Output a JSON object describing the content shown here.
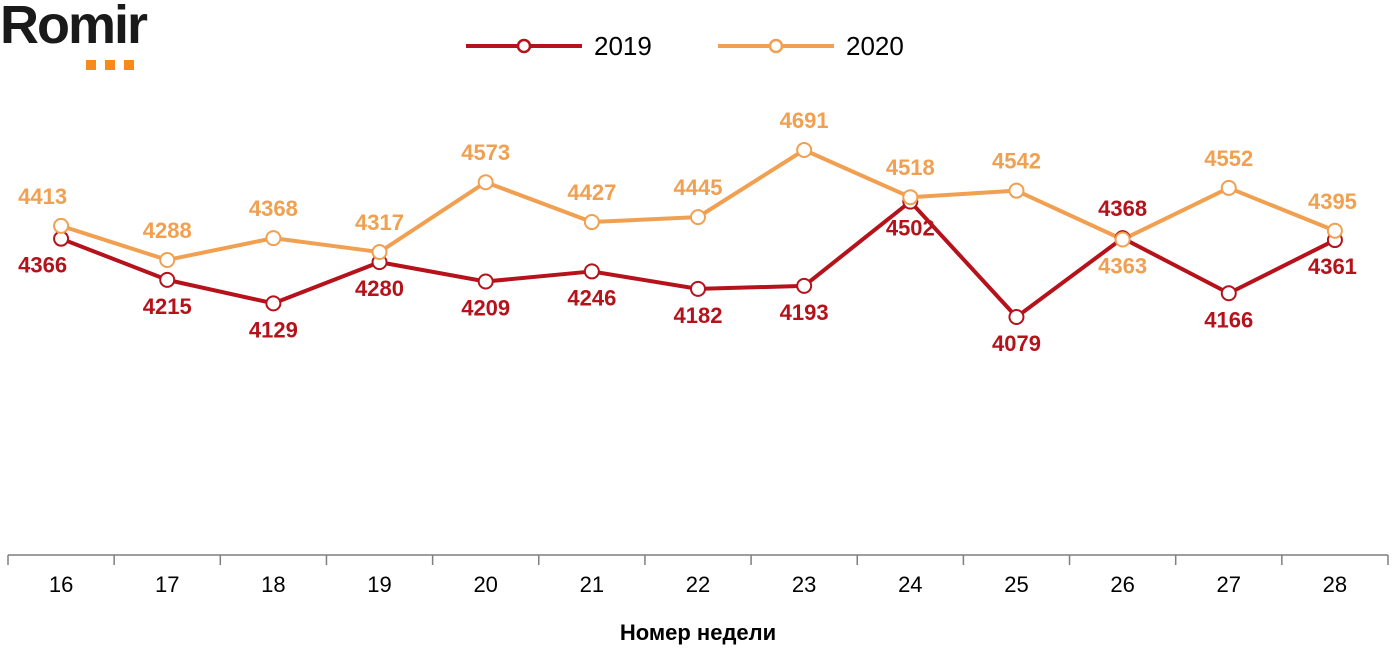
{
  "logo": {
    "text": "Romir",
    "dot_color": "#f58a1f"
  },
  "chart_data": {
    "type": "line",
    "title": "",
    "xlabel": "Номер недели",
    "ylabel": "",
    "categories": [
      "16",
      "17",
      "18",
      "19",
      "20",
      "21",
      "22",
      "23",
      "24",
      "25",
      "26",
      "27",
      "28"
    ],
    "ylim": [
      3000,
      4800
    ],
    "grid": false,
    "legend_position": "top-center",
    "series": [
      {
        "name": "2019",
        "color": "#b5121b",
        "values": [
          4366,
          4215,
          4129,
          4280,
          4209,
          4246,
          4182,
          4193,
          4502,
          4079,
          4368,
          4166,
          4361
        ]
      },
      {
        "name": "2020",
        "color": "#f0a050",
        "values": [
          4413,
          4288,
          4368,
          4317,
          4573,
          4427,
          4445,
          4691,
          4518,
          4542,
          4363,
          4552,
          4395
        ]
      }
    ]
  }
}
